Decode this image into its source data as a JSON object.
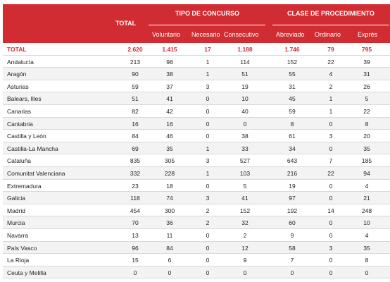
{
  "header": {
    "total": "TOTAL",
    "tipo_group": "TIPO DE CONCURSO",
    "clase_group": "CLASE DE PROCEDIMIENTO",
    "columns": [
      "Voluntario",
      "Necesario",
      "Consecutivo",
      "Abreviado",
      "Ordinario",
      "Exprés"
    ]
  },
  "rows": [
    {
      "name": "TOTAL",
      "values": [
        "2.620",
        "1.415",
        "17",
        "1.188",
        "1.746",
        "79",
        "795"
      ]
    },
    {
      "name": "Andalucía",
      "values": [
        "213",
        "98",
        "1",
        "114",
        "152",
        "22",
        "39"
      ]
    },
    {
      "name": "Aragón",
      "values": [
        "90",
        "38",
        "1",
        "51",
        "55",
        "4",
        "31"
      ]
    },
    {
      "name": "Asturias",
      "values": [
        "59",
        "37",
        "3",
        "19",
        "31",
        "2",
        "26"
      ]
    },
    {
      "name": "Balears, Illes",
      "values": [
        "51",
        "41",
        "0",
        "10",
        "45",
        "1",
        "5"
      ]
    },
    {
      "name": "Canarias",
      "values": [
        "82",
        "42",
        "0",
        "40",
        "59",
        "1",
        "22"
      ]
    },
    {
      "name": "Cantabria",
      "values": [
        "16",
        "16",
        "0",
        "0",
        "8",
        "0",
        "8"
      ]
    },
    {
      "name": "Castilla y León",
      "values": [
        "84",
        "46",
        "0",
        "38",
        "61",
        "3",
        "20"
      ]
    },
    {
      "name": "Castilla-La Mancha",
      "values": [
        "69",
        "35",
        "1",
        "33",
        "34",
        "0",
        "35"
      ]
    },
    {
      "name": "Cataluña",
      "values": [
        "835",
        "305",
        "3",
        "527",
        "643",
        "7",
        "185"
      ]
    },
    {
      "name": "Comunitat Valenciana",
      "values": [
        "332",
        "228",
        "1",
        "103",
        "216",
        "22",
        "94"
      ]
    },
    {
      "name": "Extremadura",
      "values": [
        "23",
        "18",
        "0",
        "5",
        "19",
        "0",
        "4"
      ]
    },
    {
      "name": "Galicia",
      "values": [
        "118",
        "74",
        "3",
        "41",
        "97",
        "0",
        "21"
      ]
    },
    {
      "name": "Madrid",
      "values": [
        "454",
        "300",
        "2",
        "152",
        "192",
        "14",
        "248"
      ]
    },
    {
      "name": "Murcia",
      "values": [
        "70",
        "36",
        "2",
        "32",
        "60",
        "0",
        "10"
      ]
    },
    {
      "name": "Navarra",
      "values": [
        "13",
        "11",
        "0",
        "2",
        "9",
        "0",
        "4"
      ]
    },
    {
      "name": "País Vasco",
      "values": [
        "96",
        "84",
        "0",
        "12",
        "58",
        "3",
        "35"
      ]
    },
    {
      "name": "La Rioja",
      "values": [
        "15",
        "6",
        "0",
        "9",
        "7",
        "0",
        "8"
      ]
    },
    {
      "name": "Ceuta y Melilla",
      "values": [
        "0",
        "0",
        "0",
        "0",
        "0",
        "0",
        "0"
      ]
    }
  ]
}
